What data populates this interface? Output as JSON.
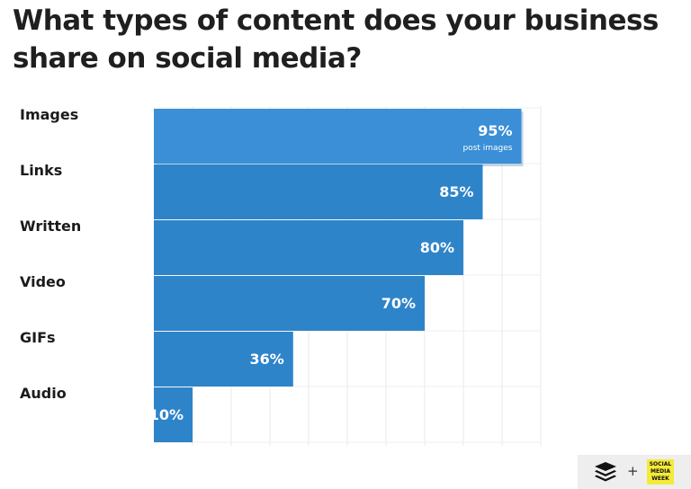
{
  "title": "What types of content does your business share on social media?",
  "chart_data": {
    "type": "bar",
    "orientation": "horizontal",
    "categories": [
      "Images",
      "Links",
      "Written",
      "Video",
      "GIFs",
      "Audio"
    ],
    "values": [
      95,
      85,
      80,
      70,
      36,
      10
    ],
    "value_labels": [
      "95%",
      "85%",
      "80%",
      "70%",
      "36%",
      "10%"
    ],
    "annotations": [
      {
        "category": "Images",
        "text": "post images"
      }
    ],
    "xlim": [
      0,
      100
    ],
    "grid": true,
    "bar_color": "#2e84c9",
    "highlight_color": "#3a8fd6"
  },
  "branding": {
    "plus": "+",
    "badge_lines": [
      "SOCIAL",
      "MEDIA",
      "WEEK"
    ],
    "badge_color": "#f5ea3a"
  }
}
